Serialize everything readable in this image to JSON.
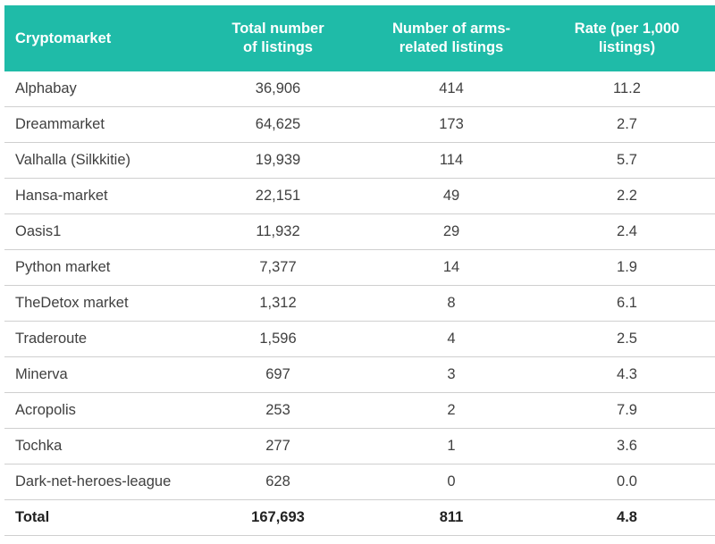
{
  "chart_data": {
    "type": "table",
    "columns": [
      "Cryptomarket",
      "Total number of listings",
      "Number of arms-related listings",
      "Rate (per 1,000 listings)"
    ],
    "header_lines": [
      [
        "Cryptomarket"
      ],
      [
        "Total number",
        "of listings"
      ],
      [
        "Number of arms-",
        "related listings"
      ],
      [
        "Rate (per 1,000",
        "listings)"
      ]
    ],
    "rows": [
      [
        "Alphabay",
        "36,906",
        "414",
        "11.2"
      ],
      [
        "Dreammarket",
        "64,625",
        "173",
        "2.7"
      ],
      [
        "Valhalla (Silkkitie)",
        "19,939",
        "114",
        "5.7"
      ],
      [
        "Hansa-market",
        "22,151",
        "49",
        "2.2"
      ],
      [
        "Oasis1",
        "11,932",
        "29",
        "2.4"
      ],
      [
        "Python market",
        "7,377",
        "14",
        "1.9"
      ],
      [
        "TheDetox market",
        "1,312",
        "8",
        "6.1"
      ],
      [
        "Traderoute",
        "1,596",
        "4",
        "2.5"
      ],
      [
        "Minerva",
        "697",
        "3",
        "4.3"
      ],
      [
        "Acropolis",
        "253",
        "2",
        "7.9"
      ],
      [
        "Tochka",
        "277",
        "1",
        "3.6"
      ],
      [
        "Dark-net-heroes-league",
        "628",
        "0",
        "0.0"
      ]
    ],
    "total": [
      "Total",
      "167,693",
      "811",
      "4.8"
    ]
  },
  "colors": {
    "header_bg": "#1fbba8",
    "header_text": "#ffffff",
    "row_border": "#cfcfcf"
  }
}
